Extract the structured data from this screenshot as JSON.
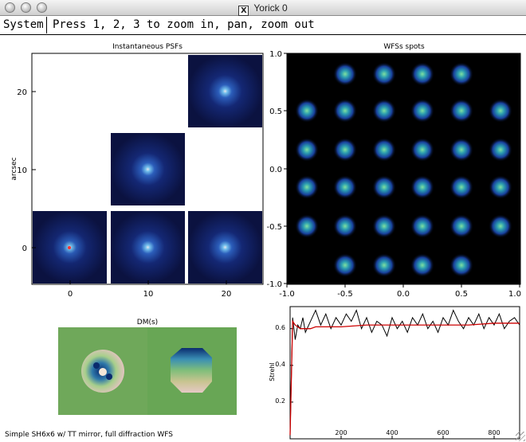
{
  "window": {
    "title": "Yorick 0"
  },
  "menu": {
    "system_label": "System",
    "prompt": "Press 1, 2, 3 to zoom in, pan, zoom out"
  },
  "status_text": "Simple SH6x6 w/ TT mirror, full diffraction WFS",
  "panels": {
    "psf": {
      "title": "Instantaneous PSFs",
      "ylabel": "arcsec",
      "x_ticks": [
        "0",
        "10",
        "20"
      ],
      "y_ticks": [
        "0",
        "10",
        "20"
      ]
    },
    "wfs": {
      "title": "WFSs spots",
      "x_ticks": [
        "-1.0",
        "-0.5",
        "0.0",
        "0.5",
        "1.0"
      ],
      "y_ticks": [
        "-1.0",
        "-0.5",
        "0.0",
        "0.5",
        "1.0"
      ]
    },
    "dm": {
      "title": "DM(s)"
    },
    "strehl": {
      "ylabel": "Strehl",
      "x_ticks": [
        "200",
        "400",
        "600",
        "800"
      ],
      "y_ticks": [
        "0.6",
        "0.4",
        "0.2"
      ]
    }
  },
  "colors": {
    "psf_bg": "#0b1240",
    "wfs_bg": "#000000",
    "dm_green": "#6fa85a",
    "black_curve": "#000000",
    "red_curve": "#cc0000"
  },
  "chart_data": {
    "type": "line",
    "xlabel": "",
    "ylabel": "Strehl",
    "xlim": [
      0,
      900
    ],
    "ylim": [
      0,
      0.72
    ],
    "series": [
      {
        "x": [
          0,
          10,
          20,
          30,
          40,
          50,
          60,
          80,
          100,
          120,
          140,
          160,
          180,
          200,
          220,
          240,
          260,
          280,
          300,
          320,
          340,
          360,
          380,
          400,
          420,
          440,
          460,
          480,
          500,
          520,
          540,
          560,
          580,
          600,
          620,
          640,
          660,
          680,
          700,
          720,
          740,
          760,
          780,
          800,
          820,
          840,
          860,
          880,
          900
        ],
        "values": [
          0.02,
          0.66,
          0.54,
          0.62,
          0.6,
          0.66,
          0.58,
          0.64,
          0.7,
          0.62,
          0.68,
          0.6,
          0.66,
          0.62,
          0.68,
          0.64,
          0.7,
          0.6,
          0.66,
          0.58,
          0.64,
          0.62,
          0.56,
          0.66,
          0.6,
          0.64,
          0.58,
          0.66,
          0.62,
          0.68,
          0.6,
          0.64,
          0.58,
          0.66,
          0.62,
          0.7,
          0.64,
          0.6,
          0.66,
          0.62,
          0.68,
          0.6,
          0.66,
          0.62,
          0.68,
          0.6,
          0.64,
          0.66,
          0.62
        ]
      },
      {
        "x": [
          0,
          10,
          20,
          30,
          40,
          60,
          80,
          100,
          150,
          200,
          300,
          400,
          500,
          600,
          700,
          800,
          900
        ],
        "values": [
          0.02,
          0.64,
          0.62,
          0.61,
          0.6,
          0.6,
          0.6,
          0.61,
          0.61,
          0.61,
          0.62,
          0.62,
          0.62,
          0.62,
          0.62,
          0.63,
          0.63
        ]
      }
    ]
  }
}
